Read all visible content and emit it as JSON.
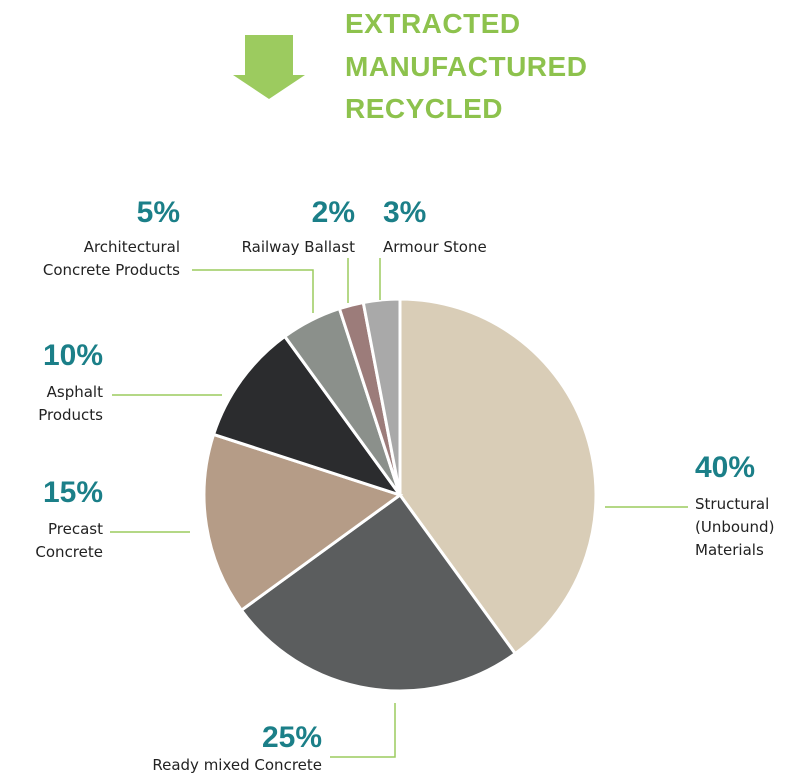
{
  "chart_data": {
    "type": "pie",
    "title": [
      "EXTRACTED",
      "MANUFACTURED",
      "RECYCLED"
    ],
    "categories": [
      "Structural (Unbound) Materials",
      "Ready mixed Concrete",
      "Precast Concrete",
      "Asphalt Products",
      "Architectural Concrete Products",
      "Railway Ballast",
      "Armour Stone"
    ],
    "values": [
      40,
      25,
      15,
      10,
      5,
      2,
      3
    ],
    "value_labels": [
      "40%",
      "25%",
      "15%",
      "10%",
      "5%",
      "2%",
      "3%"
    ],
    "colors": [
      "#d9cdb7",
      "#5b5d5e",
      "#b59c87",
      "#2b2c2e",
      "#8b908b",
      "#9c7c7a",
      "#a9a9a9"
    ]
  }
}
